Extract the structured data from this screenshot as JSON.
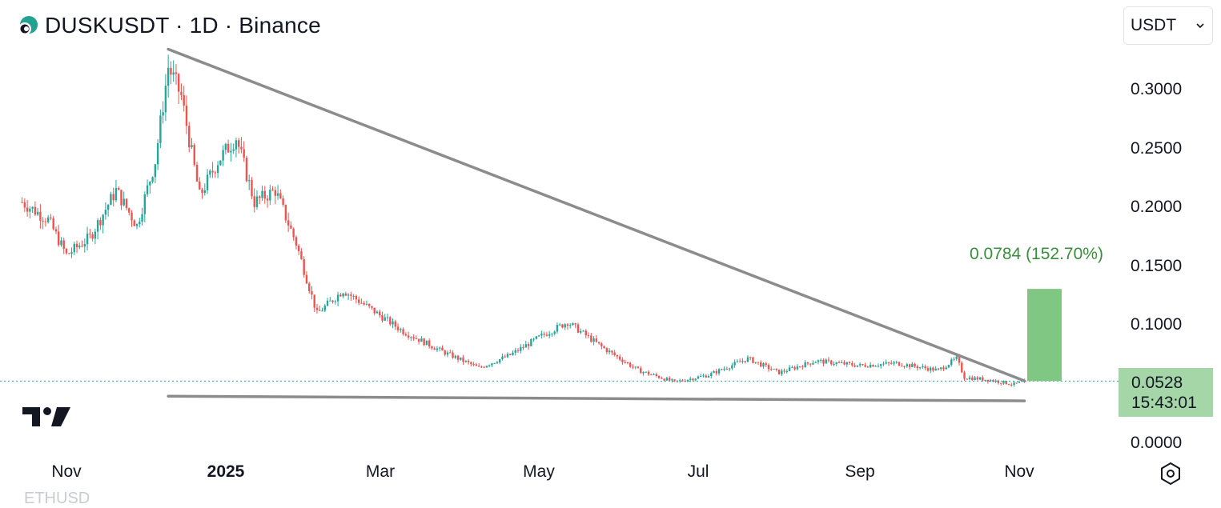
{
  "header": {
    "title": "DUSKUSDT · 1D · Binance",
    "logo_icon": "dusk-network-logo"
  },
  "currency_select": {
    "value": "USDT"
  },
  "price_axis": {
    "ticks": [
      "0.3000",
      "0.2500",
      "0.2000",
      "0.1500",
      "0.1000",
      "0.0000"
    ]
  },
  "time_axis": {
    "ticks": [
      "Nov",
      "2025",
      "Mar",
      "May",
      "Jul",
      "Sep",
      "Nov"
    ]
  },
  "last_price": {
    "price": "0.0528",
    "countdown": "15:43:01",
    "color": "#a5d6a7"
  },
  "measure": {
    "label": "0.0784 (152.70%)",
    "color": "#388e3c",
    "fill": "#81c784",
    "from": 0.0528,
    "to": 0.1312
  },
  "settings": {
    "icon": "settings-hexagon-icon"
  },
  "colors": {
    "up": "#26a69a",
    "down": "#ef5350",
    "trendline": "#8c8c8c"
  },
  "chart_data": {
    "type": "candlestick",
    "symbol": "DUSKUSDT",
    "interval": "1D",
    "exchange": "Binance",
    "ylim": [
      0,
      0.34
    ],
    "keypoints": [
      {
        "date": "2024-10-15",
        "close": 0.205
      },
      {
        "date": "2024-10-25",
        "close": 0.19
      },
      {
        "date": "2024-11-01",
        "close": 0.16
      },
      {
        "date": "2024-11-10",
        "close": 0.175
      },
      {
        "date": "2024-11-20",
        "close": 0.215
      },
      {
        "date": "2024-11-28",
        "close": 0.185
      },
      {
        "date": "2024-12-05",
        "close": 0.24
      },
      {
        "date": "2024-12-10",
        "close": 0.32
      },
      {
        "date": "2024-12-15",
        "close": 0.295
      },
      {
        "date": "2024-12-22",
        "close": 0.21
      },
      {
        "date": "2024-12-29",
        "close": 0.24
      },
      {
        "date": "2025-01-05",
        "close": 0.26
      },
      {
        "date": "2025-01-12",
        "close": 0.205
      },
      {
        "date": "2025-01-20",
        "close": 0.215
      },
      {
        "date": "2025-01-28",
        "close": 0.17
      },
      {
        "date": "2025-02-05",
        "close": 0.11
      },
      {
        "date": "2025-02-15",
        "close": 0.13
      },
      {
        "date": "2025-02-25",
        "close": 0.115
      },
      {
        "date": "2025-03-10",
        "close": 0.095
      },
      {
        "date": "2025-03-25",
        "close": 0.078
      },
      {
        "date": "2025-04-08",
        "close": 0.064
      },
      {
        "date": "2025-04-20",
        "close": 0.075
      },
      {
        "date": "2025-05-01",
        "close": 0.09
      },
      {
        "date": "2025-05-12",
        "close": 0.103
      },
      {
        "date": "2025-05-25",
        "close": 0.082
      },
      {
        "date": "2025-06-08",
        "close": 0.062
      },
      {
        "date": "2025-06-22",
        "close": 0.052
      },
      {
        "date": "2025-07-05",
        "close": 0.058
      },
      {
        "date": "2025-07-20",
        "close": 0.072
      },
      {
        "date": "2025-08-01",
        "close": 0.06
      },
      {
        "date": "2025-08-15",
        "close": 0.07
      },
      {
        "date": "2025-09-01",
        "close": 0.066
      },
      {
        "date": "2025-09-15",
        "close": 0.068
      },
      {
        "date": "2025-10-01",
        "close": 0.062
      },
      {
        "date": "2025-10-08",
        "close": 0.072
      },
      {
        "date": "2025-10-11",
        "close": 0.056
      },
      {
        "date": "2025-10-20",
        "close": 0.054
      },
      {
        "date": "2025-10-30",
        "close": 0.05
      },
      {
        "date": "2025-11-03",
        "close": 0.0528
      }
    ],
    "trendlines": [
      {
        "name": "resistance",
        "from": {
          "date": "2024-12-10",
          "price": 0.335
        },
        "to": {
          "date": "2025-11-03",
          "price": 0.053
        }
      },
      {
        "name": "support",
        "from": {
          "date": "2024-12-10",
          "price": 0.04
        },
        "to": {
          "date": "2025-11-03",
          "price": 0.036
        }
      }
    ],
    "last_price": 0.0528,
    "measure": {
      "from": 0.0528,
      "to": 0.1312,
      "change": 0.0784,
      "change_pct": 152.7
    }
  },
  "watermark_text": "ETHUSD"
}
